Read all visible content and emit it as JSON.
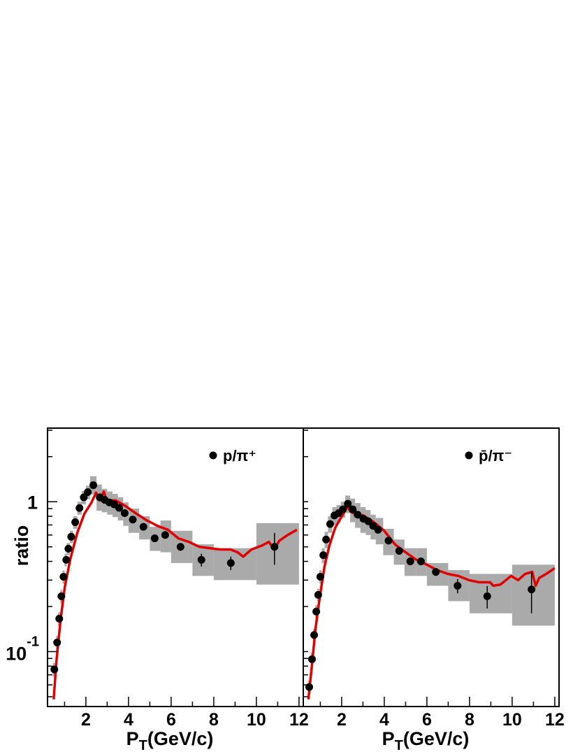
{
  "chart_data": [
    {
      "type": "scatter",
      "log_y": true,
      "xlim": [
        0.2,
        12.2
      ],
      "ylim": [
        0.043,
        3.1
      ],
      "xticks": [
        2,
        4,
        6,
        8,
        10,
        12
      ],
      "xticks_minor": [
        1,
        3,
        5,
        7,
        9,
        11
      ],
      "yticks": [
        {
          "value": 0.1,
          "label": "10",
          "superscript": "-1"
        },
        1
      ],
      "yticks_minor": [
        0.05,
        0.06,
        0.07,
        0.08,
        0.09,
        0.2,
        0.3,
        0.4,
        0.5,
        0.6,
        0.7,
        0.8,
        0.9,
        2,
        3
      ],
      "ylabel": "ratio",
      "xlabel": [
        "P",
        "T",
        "(GeV/c)"
      ],
      "legend": "upper right",
      "series": [
        {
          "name": "p/π⁺",
          "color": "#000000",
          "syst_color": "#aaaaaa",
          "x": [
            0.52,
            0.65,
            0.75,
            0.85,
            0.95,
            1.08,
            1.18,
            1.31,
            1.5,
            1.7,
            1.9,
            2.09,
            2.35,
            2.65,
            2.88,
            3.1,
            3.33,
            3.56,
            3.82,
            4.2,
            4.7,
            5.23,
            5.72,
            6.44,
            7.42,
            8.8,
            10.85
          ],
          "values": [
            0.076,
            0.115,
            0.166,
            0.234,
            0.316,
            0.41,
            0.486,
            0.584,
            0.73,
            0.908,
            1.07,
            1.16,
            1.29,
            1.07,
            1.03,
            0.99,
            0.96,
            0.91,
            0.84,
            0.76,
            0.68,
            0.57,
            0.6,
            0.5,
            0.41,
            0.39,
            0.5
          ],
          "errors": [
            0.004,
            0.005,
            0.006,
            0.008,
            0.01,
            0.01,
            0.01,
            0.01,
            0.01,
            0.01,
            0.01,
            0.01,
            0.02,
            0.02,
            0.02,
            0.02,
            0.02,
            0.02,
            0.02,
            0.02,
            0.02,
            0.02,
            0.03,
            0.03,
            0.04,
            0.04,
            0.12
          ],
          "syst_lo": [
            0.068,
            0.103,
            0.149,
            0.21,
            0.284,
            0.37,
            0.44,
            0.53,
            0.66,
            0.82,
            0.96,
            1.04,
            1.12,
            0.87,
            0.85,
            0.82,
            0.79,
            0.75,
            0.69,
            0.62,
            0.56,
            0.47,
            0.46,
            0.39,
            0.32,
            0.3,
            0.28
          ],
          "syst_hi": [
            0.084,
            0.127,
            0.183,
            0.258,
            0.348,
            0.45,
            0.53,
            0.64,
            0.8,
            1.0,
            1.18,
            1.28,
            1.48,
            1.3,
            1.22,
            1.17,
            1.13,
            1.07,
            0.99,
            0.9,
            0.8,
            0.68,
            0.75,
            0.64,
            0.52,
            0.49,
            0.72
          ],
          "bin_edges": [
            0.45,
            0.6,
            0.7,
            0.8,
            0.9,
            1.0,
            1.1,
            1.25,
            1.4,
            1.6,
            1.8,
            2.0,
            2.2,
            2.5,
            2.75,
            3.0,
            3.25,
            3.5,
            3.75,
            4.0,
            4.5,
            5.0,
            5.5,
            6.0,
            7.0,
            8.0,
            10.0,
            12.0
          ]
        }
      ],
      "curve": {
        "color": "#e00000",
        "x": [
          0.49,
          0.62,
          0.82,
          1.01,
          1.27,
          1.6,
          1.93,
          2.25,
          2.48,
          2.65,
          2.84,
          2.97,
          3.4,
          3.89,
          4.38,
          4.87,
          5.36,
          5.85,
          6.34,
          6.83,
          7.32,
          7.81,
          8.3,
          8.79,
          9.12,
          9.38,
          9.77,
          10.26,
          10.59,
          10.82,
          11.08,
          11.47,
          11.9
        ],
        "values": [
          0.048,
          0.087,
          0.166,
          0.269,
          0.414,
          0.623,
          0.833,
          0.98,
          1.15,
          1.02,
          1.17,
          1.02,
          1.02,
          0.93,
          0.83,
          0.75,
          0.69,
          0.65,
          0.57,
          0.54,
          0.5,
          0.49,
          0.48,
          0.48,
          0.46,
          0.43,
          0.48,
          0.51,
          0.54,
          0.48,
          0.55,
          0.6,
          0.65
        ]
      }
    },
    {
      "type": "scatter",
      "log_y": true,
      "xlim": [
        0.2,
        12.2
      ],
      "ylim": [
        0.043,
        3.1
      ],
      "xticks": [
        2,
        4,
        6,
        8,
        10,
        12
      ],
      "xticks_minor": [
        1,
        3,
        5,
        7,
        9,
        11
      ],
      "yticks_minor": [
        0.05,
        0.06,
        0.07,
        0.08,
        0.09,
        0.1,
        0.2,
        0.3,
        0.4,
        0.5,
        0.6,
        0.7,
        0.8,
        0.9,
        1,
        2,
        3
      ],
      "xlabel": [
        "P",
        "T",
        "(GeV/c)"
      ],
      "legend": "upper right",
      "series": [
        {
          "name": "p̄/π⁻",
          "color": "#000000",
          "syst_color": "#aaaaaa",
          "x": [
            0.48,
            0.61,
            0.71,
            0.81,
            0.9,
            1.0,
            1.14,
            1.27,
            1.46,
            1.66,
            1.86,
            2.06,
            2.29,
            2.52,
            2.75,
            3.02,
            3.25,
            3.48,
            3.71,
            4.2,
            4.7,
            5.22,
            5.72,
            6.42,
            7.44,
            8.83,
            10.91
          ],
          "values": [
            0.058,
            0.089,
            0.129,
            0.185,
            0.239,
            0.316,
            0.44,
            0.56,
            0.71,
            0.81,
            0.84,
            0.89,
            0.97,
            0.89,
            0.82,
            0.77,
            0.74,
            0.69,
            0.65,
            0.55,
            0.47,
            0.4,
            0.4,
            0.34,
            0.275,
            0.234,
            0.26
          ],
          "errors": [
            0.003,
            0.004,
            0.005,
            0.006,
            0.008,
            0.01,
            0.01,
            0.01,
            0.01,
            0.01,
            0.01,
            0.01,
            0.02,
            0.02,
            0.02,
            0.02,
            0.02,
            0.02,
            0.02,
            0.02,
            0.02,
            0.02,
            0.02,
            0.02,
            0.03,
            0.04,
            0.08
          ],
          "syst_lo": [
            0.052,
            0.08,
            0.116,
            0.167,
            0.215,
            0.285,
            0.39,
            0.49,
            0.62,
            0.7,
            0.73,
            0.78,
            0.84,
            0.73,
            0.67,
            0.62,
            0.6,
            0.56,
            0.52,
            0.44,
            0.38,
            0.32,
            0.32,
            0.275,
            0.217,
            0.18,
            0.149
          ],
          "syst_hi": [
            0.064,
            0.098,
            0.142,
            0.204,
            0.263,
            0.35,
            0.49,
            0.63,
            0.8,
            0.92,
            0.95,
            1.0,
            1.1,
            1.05,
            0.98,
            0.92,
            0.88,
            0.82,
            0.78,
            0.66,
            0.56,
            0.49,
            0.49,
            0.39,
            0.35,
            0.33,
            0.38
          ],
          "bin_edges": [
            0.42,
            0.55,
            0.66,
            0.76,
            0.86,
            0.95,
            1.07,
            1.2,
            1.36,
            1.56,
            1.76,
            1.96,
            2.17,
            2.4,
            2.63,
            2.88,
            3.13,
            3.36,
            3.6,
            3.95,
            4.45,
            4.95,
            5.5,
            6.0,
            7.0,
            8.0,
            10.0,
            12.0
          ]
        }
      ],
      "curve": {
        "color": "#e00000",
        "x": [
          0.44,
          0.61,
          0.77,
          0.97,
          1.2,
          1.43,
          1.7,
          2.03,
          2.26,
          2.42,
          2.62,
          3.02,
          3.51,
          4.0,
          4.5,
          5.0,
          5.5,
          6.0,
          6.48,
          6.98,
          7.47,
          7.97,
          8.46,
          8.96,
          9.12,
          9.45,
          9.95,
          10.28,
          10.61,
          10.94,
          11.1,
          11.27,
          11.6,
          11.99
        ],
        "values": [
          0.048,
          0.082,
          0.141,
          0.229,
          0.372,
          0.513,
          0.672,
          0.81,
          0.93,
          0.86,
          0.83,
          0.81,
          0.73,
          0.64,
          0.52,
          0.46,
          0.41,
          0.38,
          0.35,
          0.33,
          0.32,
          0.3,
          0.29,
          0.29,
          0.275,
          0.28,
          0.32,
          0.3,
          0.33,
          0.34,
          0.275,
          0.31,
          0.33,
          0.36
        ]
      }
    }
  ]
}
